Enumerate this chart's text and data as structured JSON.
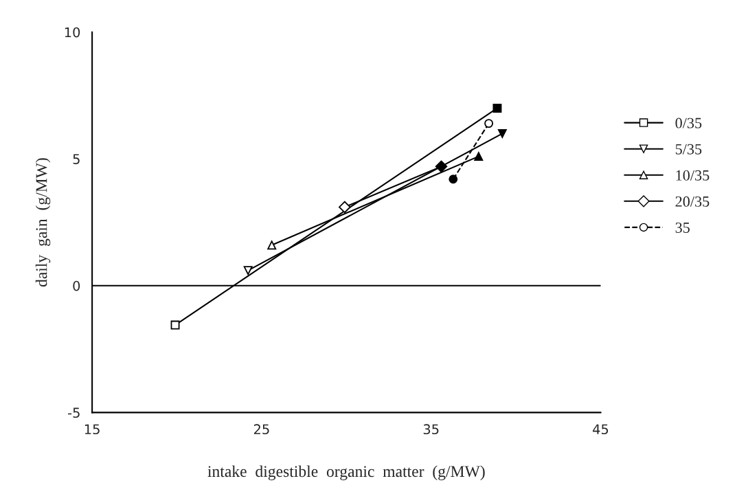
{
  "chart_data": {
    "type": "line",
    "xlabel": "intake  digestible  organic  matter  (g/MW)",
    "ylabel": "daily  gain  (g/MW)",
    "xlim": [
      15,
      45
    ],
    "ylim": [
      -5,
      10
    ],
    "xticks": [
      15,
      25,
      35,
      45
    ],
    "yticks": [
      -5,
      0,
      5,
      10
    ],
    "grid": false,
    "legend": "right",
    "ref_lines": [
      {
        "axis": "y",
        "value": 0,
        "color": "#000000"
      }
    ],
    "series": [
      {
        "name": "0/35",
        "x": [
          19.9,
          38.9
        ],
        "values": [
          -1.55,
          7.0
        ],
        "color": "#000000",
        "colors": [
          "#ffffff",
          "#000000"
        ],
        "marker": "square",
        "line_style": "solid"
      },
      {
        "name": "5/35",
        "x": [
          24.2,
          39.2
        ],
        "values": [
          0.6,
          6.0
        ],
        "color": "#000000",
        "colors": [
          "#ffffff",
          "#000000"
        ],
        "marker": "triangle_down",
        "line_style": "solid"
      },
      {
        "name": "10/35",
        "x": [
          25.6,
          37.8
        ],
        "values": [
          1.6,
          5.1
        ],
        "color": "#000000",
        "colors": [
          "#ffffff",
          "#000000"
        ],
        "marker": "triangle",
        "line_style": "solid"
      },
      {
        "name": "20/35",
        "x": [
          29.9,
          35.6
        ],
        "values": [
          3.1,
          4.7
        ],
        "color": "#000000",
        "colors": [
          "#ffffff",
          "#000000"
        ],
        "marker": "diamond",
        "line_style": "solid"
      },
      {
        "name": "35",
        "x": [
          38.4,
          36.3
        ],
        "values": [
          6.4,
          4.2
        ],
        "color": "#000000",
        "colors": [
          "#ffffff",
          "#000000"
        ],
        "marker": "circle",
        "line_style": "dashed"
      }
    ]
  }
}
